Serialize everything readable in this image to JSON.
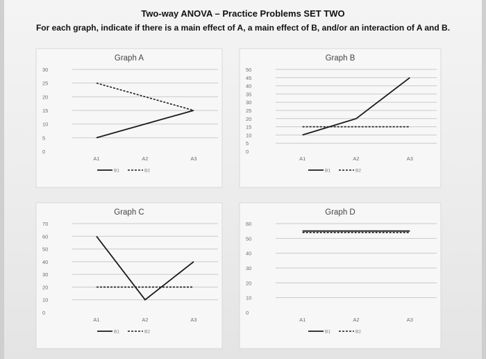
{
  "header": {
    "title": "Two-way ANOVA – Practice Problems SET TWO",
    "instructions": "For each graph, indicate if there is a main effect of A, a main effect of B, and/or an interaction of A and B."
  },
  "chart_data": [
    {
      "type": "line",
      "title": "Graph A",
      "categories": [
        "A1",
        "A2",
        "A3"
      ],
      "ylim": [
        0,
        30
      ],
      "yticks": [
        0,
        5,
        10,
        15,
        20,
        25,
        30
      ],
      "series": [
        {
          "name": "B1",
          "values": [
            5,
            10,
            15
          ]
        },
        {
          "name": "B2",
          "values": [
            25,
            20,
            15
          ]
        }
      ],
      "legend": "bottom",
      "grid": true
    },
    {
      "type": "line",
      "title": "Graph B",
      "categories": [
        "A1",
        "A2",
        "A3"
      ],
      "ylim": [
        0,
        50
      ],
      "yticks": [
        0,
        5,
        10,
        15,
        20,
        25,
        30,
        35,
        40,
        45,
        50
      ],
      "series": [
        {
          "name": "B1",
          "values": [
            10,
            20,
            45
          ]
        },
        {
          "name": "B2",
          "values": [
            15,
            15,
            15
          ]
        }
      ],
      "legend": "bottom",
      "grid": true
    },
    {
      "type": "line",
      "title": "Graph C",
      "categories": [
        "A1",
        "A2",
        "A3"
      ],
      "ylim": [
        0,
        70
      ],
      "yticks": [
        0,
        10,
        20,
        30,
        40,
        50,
        60,
        70
      ],
      "series": [
        {
          "name": "B1",
          "values": [
            60,
            10,
            40
          ]
        },
        {
          "name": "B2",
          "values": [
            20,
            20,
            20
          ]
        }
      ],
      "legend": "bottom",
      "grid": true
    },
    {
      "type": "line",
      "title": "Graph D",
      "categories": [
        "A1",
        "A2",
        "A3"
      ],
      "ylim": [
        0,
        60
      ],
      "yticks": [
        0,
        10,
        20,
        30,
        40,
        50,
        60
      ],
      "series": [
        {
          "name": "B1",
          "values": [
            55,
            55,
            55
          ]
        },
        {
          "name": "B2",
          "values": [
            54,
            54,
            54
          ]
        }
      ],
      "legend": "bottom",
      "grid": true
    }
  ]
}
